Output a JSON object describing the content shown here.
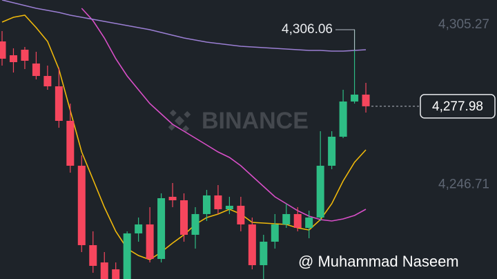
{
  "chart_data": {
    "type": "candlestick",
    "up_color": "#2ebd85",
    "down_color": "#f6465d",
    "open": [
      4301.76,
      4296.69,
      4298.72,
      4293.66,
      4289.1,
      4285.3,
      4272.64,
      4256.18,
      4227.06,
      4220.73,
      4218.2,
      4213.5,
      4231.37,
      4234.66,
      4222.0,
      4244.79,
      4243.52,
      4230.86,
      4238.46,
      4245.29,
      4240.23,
      4241.5,
      4234.66,
      4219.72,
      4228.33,
      4234.66,
      4238.46,
      4233.39,
      4237.19,
      4256.18,
      4266.82,
      4279.73,
      4282.26
    ],
    "high": [
      4305.56,
      4299.23,
      4299.73,
      4297.96,
      4292.9,
      4292.14,
      4278.97,
      4259.98,
      4232.13,
      4224.53,
      4220.73,
      4232.13,
      4237.19,
      4240.99,
      4246.05,
      4249.85,
      4246.05,
      4240.99,
      4247.32,
      4249.09,
      4244.79,
      4244.79,
      4237.19,
      4230.86,
      4238.46,
      4242.26,
      4240.99,
      4239.72,
      4268.84,
      4268.84,
      4284.03,
      4306.06,
      4286.57
    ],
    "low": [
      4292.9,
      4290.36,
      4291.63,
      4287.83,
      4284.03,
      4270.11,
      4253.65,
      4224.53,
      4216.94,
      4213.0,
      4213.0,
      4213.0,
      4228.33,
      4220.73,
      4220.73,
      4240.99,
      4228.33,
      4225.8,
      4235.93,
      4238.46,
      4238.46,
      4232.13,
      4218.2,
      4213.0,
      4225.8,
      4233.39,
      4232.13,
      4229.6,
      4235.93,
      4254.92,
      4266.31,
      4278.97,
      4275.68
    ],
    "close": [
      4295.43,
      4294.16,
      4294.67,
      4289.1,
      4285.3,
      4272.64,
      4256.18,
      4227.06,
      4219.47,
      4213.5,
      4213.5,
      4231.37,
      4234.66,
      4222.0,
      4244.28,
      4243.52,
      4230.86,
      4238.46,
      4245.29,
      4240.23,
      4241.5,
      4234.66,
      4219.72,
      4228.33,
      4234.66,
      4238.46,
      4233.39,
      4237.19,
      4256.18,
      4266.82,
      4279.73,
      4282.26,
      4277.98
    ],
    "moving_averages": [
      {
        "color": "#f0b90b",
        "values": [
          4308.85,
          4310.62,
          4311.38,
          4306.82,
          4301.76,
          4291.63,
          4276.44,
          4261.25,
          4251.12,
          4240.99,
          4232.13,
          4225.8,
          4223.27,
          4221.75,
          4224.53,
          4227.82,
          4230.86,
          4234.66,
          4237.19,
          4238.46,
          4240.23,
          4238.46,
          4235.42,
          4235.17,
          4234.91,
          4234.66,
          4233.39,
          4232.63,
          4236.43,
          4242.26,
          4250.61,
          4257.45,
          4262.01
        ]
      },
      {
        "color": "#d94fc8",
        "values": [
          null,
          null,
          null,
          null,
          null,
          null,
          null,
          4313.91,
          4309.35,
          4303.02,
          4295.43,
          4289.1,
          4284.03,
          4278.97,
          4275.17,
          4271.37,
          4268.84,
          4266.31,
          4263.78,
          4261.25,
          4259.22,
          4256.18,
          4252.38,
          4248.59,
          4244.79,
          4242.26,
          4239.72,
          4237.7,
          4236.43,
          4235.93,
          4236.69,
          4237.95,
          4240.23
        ]
      },
      {
        "color": "#9b7fd4",
        "values": [
          4316.95,
          4315.94,
          4314.92,
          4313.91,
          4313.15,
          4312.39,
          4311.38,
          4310.62,
          4309.86,
          4309.1,
          4308.34,
          4307.58,
          4306.82,
          4306.06,
          4305.05,
          4304.04,
          4303.02,
          4302.26,
          4301.5,
          4301.0,
          4300.49,
          4299.99,
          4299.73,
          4299.48,
          4299.23,
          4298.97,
          4298.72,
          4298.47,
          4298.47,
          4298.21,
          4298.21,
          4298.47,
          4298.72
        ]
      }
    ],
    "ylim": [
      4214.65,
      4316.95
    ],
    "yticks": [
      {
        "value": 4305.27,
        "label": "4,305.27"
      },
      {
        "value": 4246.71,
        "label": "4,246.71"
      }
    ],
    "high_marker": {
      "value": 4306.06,
      "label": "4,306.06"
    },
    "last_price": {
      "value": 4277.98,
      "label": "4,277.98"
    },
    "watermark": "BINANCE",
    "credit": "@ Muhammad Naseem"
  }
}
